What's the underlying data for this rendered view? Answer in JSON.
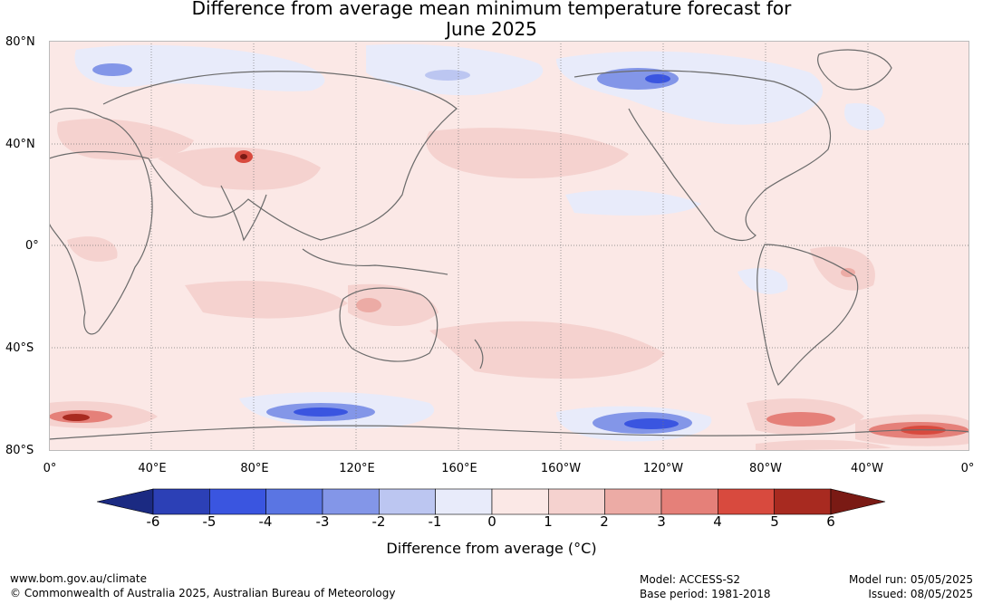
{
  "title": {
    "line1": "Difference from average mean minimum temperature forecast for",
    "line2": "June 2025"
  },
  "map": {
    "lat_labels": [
      "80°N",
      "40°N",
      "0°",
      "40°S",
      "80°S"
    ],
    "lon_labels": [
      "0°",
      "40°E",
      "80°E",
      "120°E",
      "160°E",
      "160°W",
      "120°W",
      "80°W",
      "40°W",
      "0°"
    ],
    "background_color": "#fbe8e6"
  },
  "colorbar": {
    "ticks": [
      "-6",
      "-5",
      "-4",
      "-3",
      "-2",
      "-1",
      "0",
      "1",
      "2",
      "3",
      "4",
      "5",
      "6"
    ],
    "colors": [
      "#1b2a82",
      "#2c40b6",
      "#3a55e0",
      "#5a75e3",
      "#8396e8",
      "#bcc6f1",
      "#e8ebfa",
      "#fbe8e6",
      "#f5d2cf",
      "#ecaba5",
      "#e58079",
      "#d84a3e",
      "#a82a20",
      "#7a1a14"
    ],
    "label": "Difference from average (°C)"
  },
  "footer": {
    "website": "www.bom.gov.au/climate",
    "copyright": "© Commonwealth of Australia 2025, Australian Bureau of Meteorology",
    "model": "Model: ACCESS-S2",
    "base_period": "Base period: 1981-2018",
    "model_run": "Model run: 05/05/2025",
    "issued": "Issued: 08/05/2025"
  }
}
